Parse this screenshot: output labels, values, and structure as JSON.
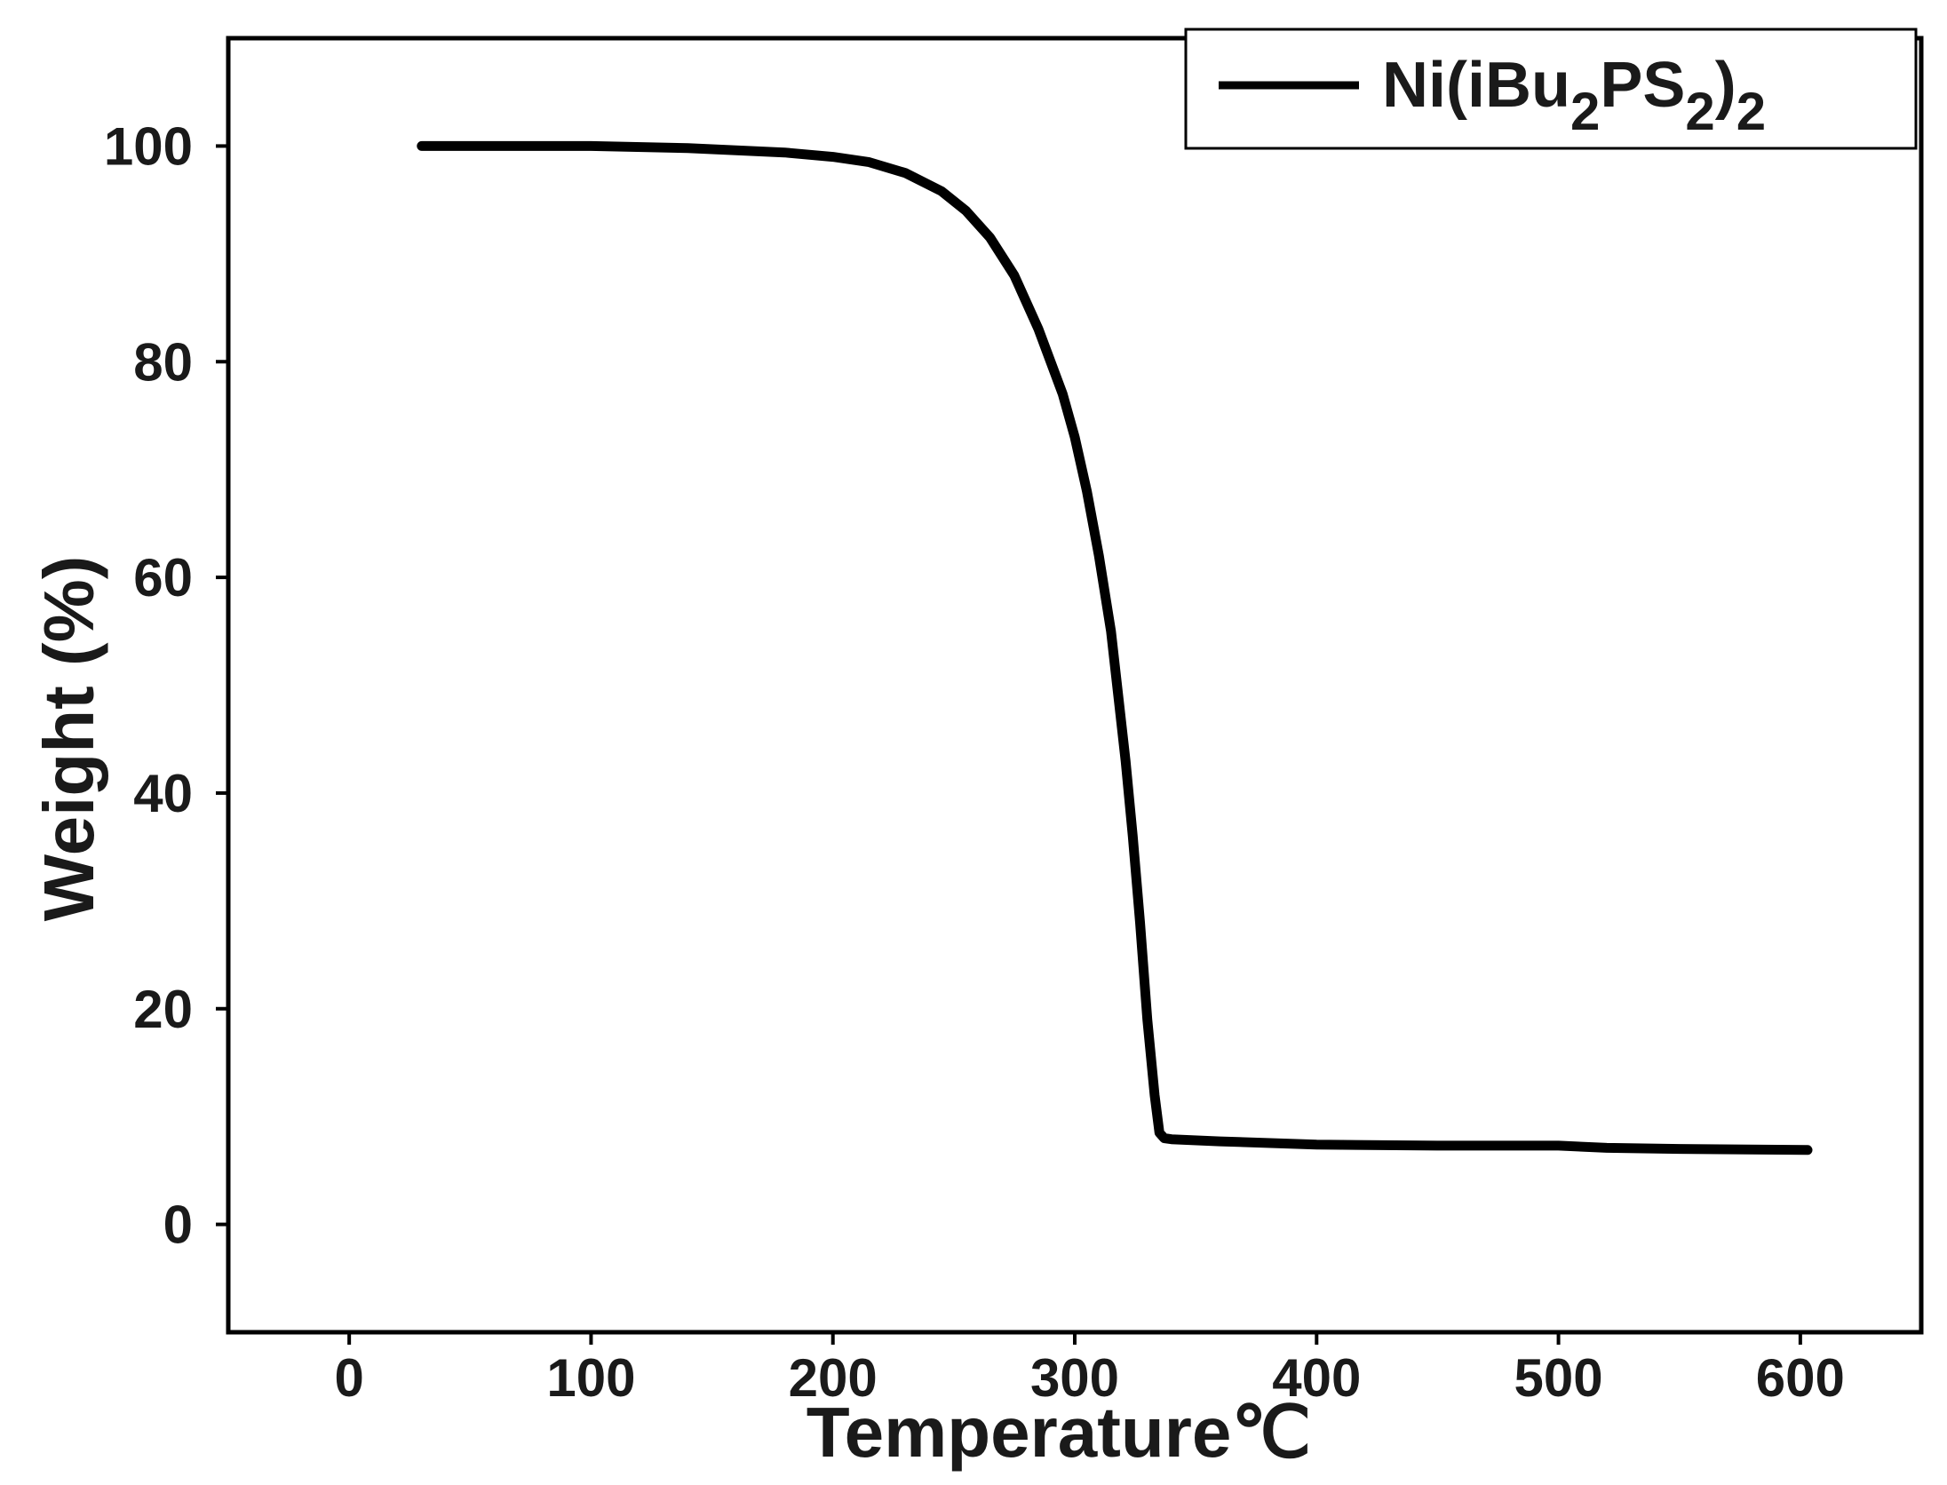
{
  "chart_data": {
    "type": "line",
    "xlabel": "Temperature℃",
    "ylabel": "Weight (%)",
    "xlim": [
      -50,
      650
    ],
    "ylim": [
      -10,
      110
    ],
    "xticks": [
      0,
      100,
      200,
      300,
      400,
      500,
      600
    ],
    "yticks": [
      0,
      20,
      40,
      60,
      80,
      100
    ],
    "xtick_labels": [
      "0",
      "100",
      "200",
      "300",
      "400",
      "500",
      "600"
    ],
    "ytick_labels": [
      "0",
      "20",
      "40",
      "60",
      "80",
      "100"
    ],
    "grid": false,
    "legend_position": "top-right",
    "line_color": "#000000",
    "series": [
      {
        "name": "Ni(iBu2PS2)2",
        "legend_parts": [
          {
            "text": "Ni(iBu",
            "sub": false
          },
          {
            "text": "2",
            "sub": true
          },
          {
            "text": "PS",
            "sub": false
          },
          {
            "text": "2",
            "sub": true
          },
          {
            "text": ")",
            "sub": false
          },
          {
            "text": "2",
            "sub": true
          }
        ],
        "x": [
          30,
          60,
          100,
          140,
          180,
          200,
          215,
          230,
          245,
          255,
          265,
          275,
          285,
          295,
          300,
          305,
          310,
          315,
          318,
          321,
          324,
          327,
          330,
          333,
          335,
          337,
          340,
          360,
          400,
          450,
          500,
          520,
          550,
          603
        ],
        "y": [
          100,
          100,
          100,
          99.8,
          99.4,
          99,
          98.5,
          97.5,
          95.8,
          94,
          91.5,
          88,
          83,
          77,
          73,
          68,
          62,
          55,
          49,
          43,
          36,
          28,
          19,
          12,
          8.5,
          8,
          7.9,
          7.7,
          7.4,
          7.3,
          7.3,
          7.1,
          7.0,
          6.9
        ]
      }
    ]
  }
}
